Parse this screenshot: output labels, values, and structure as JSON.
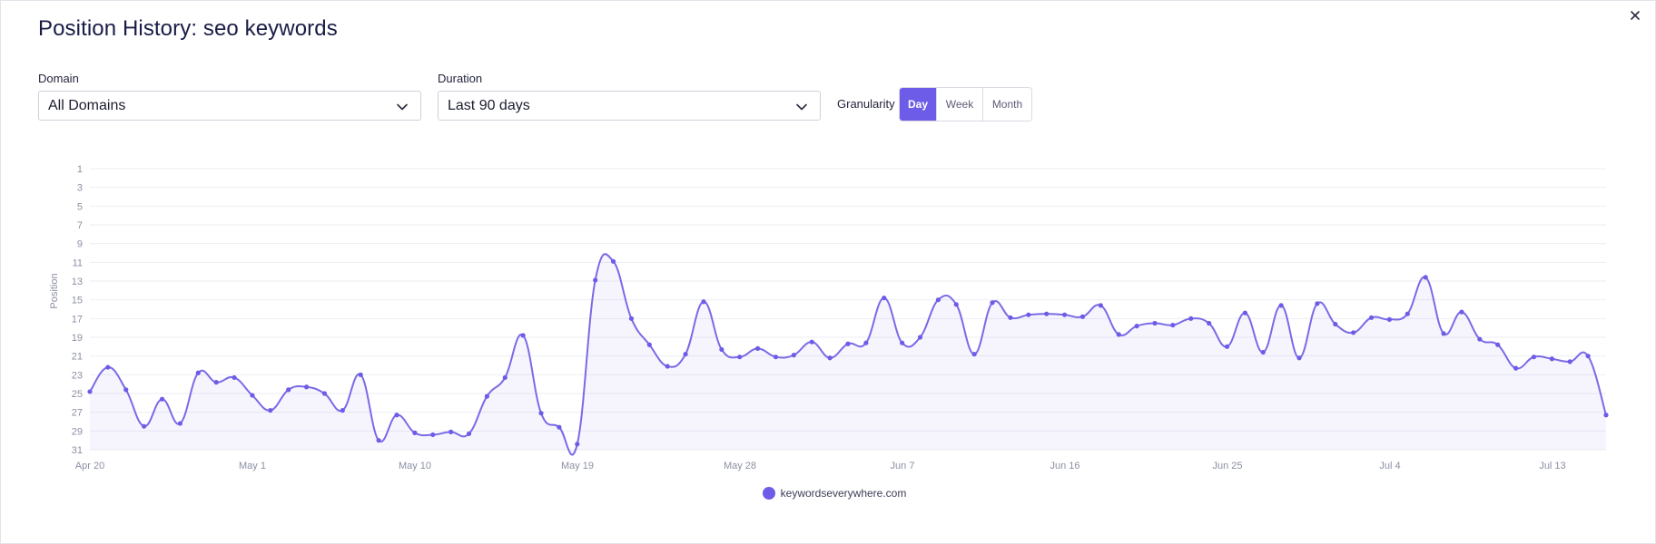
{
  "modal": {
    "title": "Position History: seo keywords",
    "close_label": "×"
  },
  "filters": {
    "domain": {
      "label": "Domain",
      "value": "All Domains"
    },
    "duration": {
      "label": "Duration",
      "value": "Last 90 days"
    },
    "granularity": {
      "label": "Granularity",
      "options": [
        "Day",
        "Week",
        "Month"
      ],
      "selected": "Day"
    }
  },
  "colors": {
    "accent": "#6c5ce7",
    "series": "#7a6ae6",
    "grid": "#eceef3",
    "tick": "#8b8fa3"
  },
  "chart_data": {
    "type": "line",
    "ylabel": "Position",
    "xlabel": "",
    "y_reversed": true,
    "ylim": [
      1,
      31
    ],
    "y_ticks": [
      1,
      3,
      5,
      7,
      9,
      11,
      13,
      15,
      17,
      19,
      21,
      23,
      25,
      27,
      29,
      31
    ],
    "x_tick_labels": [
      "Apr 20",
      "May 1",
      "May 10",
      "May 19",
      "May 28",
      "Jun 7",
      "Jun 16",
      "Jun 25",
      "Jul 4",
      "Jul 13"
    ],
    "grid": true,
    "legend_position": "bottom-center",
    "series": [
      {
        "name": "keywordseverywhere.com",
        "values": [
          24.8,
          22.2,
          24.6,
          28.5,
          25.6,
          28.2,
          22.8,
          23.8,
          23.3,
          25.2,
          26.8,
          24.6,
          24.3,
          25.0,
          26.8,
          23.0,
          30.0,
          27.3,
          29.2,
          29.4,
          29.1,
          29.3,
          25.3,
          23.3,
          18.8,
          27.1,
          28.6,
          30.4,
          12.9,
          10.9,
          17.0,
          19.8,
          22.1,
          20.8,
          15.2,
          20.3,
          21.1,
          20.2,
          21.1,
          20.9,
          19.5,
          21.2,
          19.7,
          19.6,
          14.8,
          19.6,
          19.0,
          15.0,
          15.5,
          20.8,
          15.3,
          16.9,
          16.6,
          16.5,
          16.6,
          16.8,
          15.6,
          18.7,
          17.8,
          17.5,
          17.7,
          17.0,
          17.5,
          20.0,
          16.4,
          20.6,
          15.6,
          21.2,
          15.4,
          17.6,
          18.5,
          16.9,
          17.1,
          16.5,
          12.6,
          18.6,
          16.3,
          19.2,
          19.8,
          22.3,
          21.1,
          21.3,
          21.6,
          21.0,
          27.3
        ]
      }
    ]
  }
}
